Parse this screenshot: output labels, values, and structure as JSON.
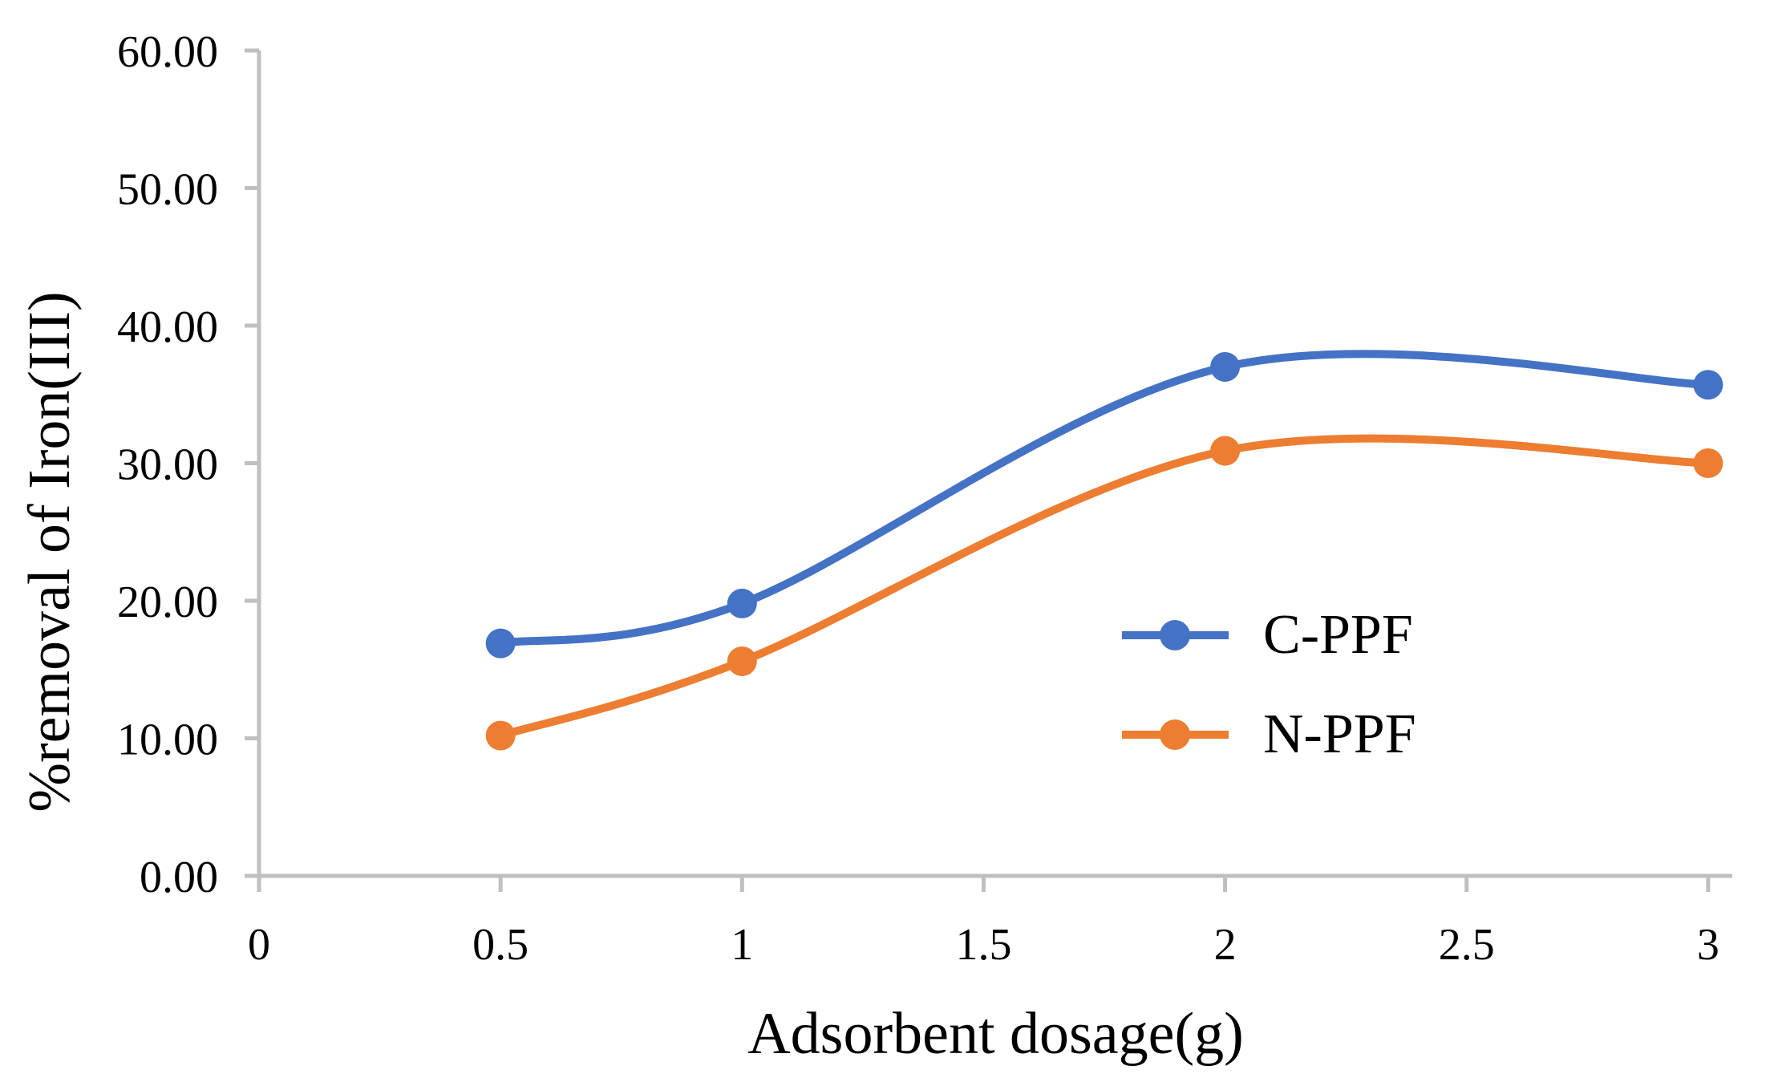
{
  "figure": {
    "background_color": "#ffffff",
    "axis_color": "#bfbfbf",
    "text_color": "#000000"
  },
  "chart_data": {
    "type": "line",
    "title": "",
    "xlabel": "Adsorbent dosage(g)",
    "ylabel": "%removal of Iron(III)",
    "x": [
      0.5,
      1,
      2,
      3
    ],
    "series": [
      {
        "name": "C-PPF",
        "color": "#4472C4",
        "values": [
          16.9,
          19.8,
          37.0,
          35.7
        ]
      },
      {
        "name": "N-PPF",
        "color": "#ED7D31",
        "values": [
          10.2,
          15.6,
          30.9,
          30.0
        ]
      }
    ],
    "xlim": [
      0,
      3.05
    ],
    "ylim": [
      0,
      60
    ],
    "xticks": {
      "values": [
        0,
        0.5,
        1,
        1.5,
        2,
        2.5,
        3
      ],
      "labels": [
        "0",
        "0.5",
        "1",
        "1.5",
        "2",
        "2.5",
        "3"
      ]
    },
    "yticks": {
      "values": [
        0,
        10,
        20,
        30,
        40,
        50,
        60
      ],
      "labels": [
        "0.00",
        "10.00",
        "20.00",
        "30.00",
        "40.00",
        "50.00",
        "60.00"
      ]
    },
    "grid": false,
    "line_style": "smooth",
    "marker": "circle",
    "legend_position": "inside-right"
  }
}
